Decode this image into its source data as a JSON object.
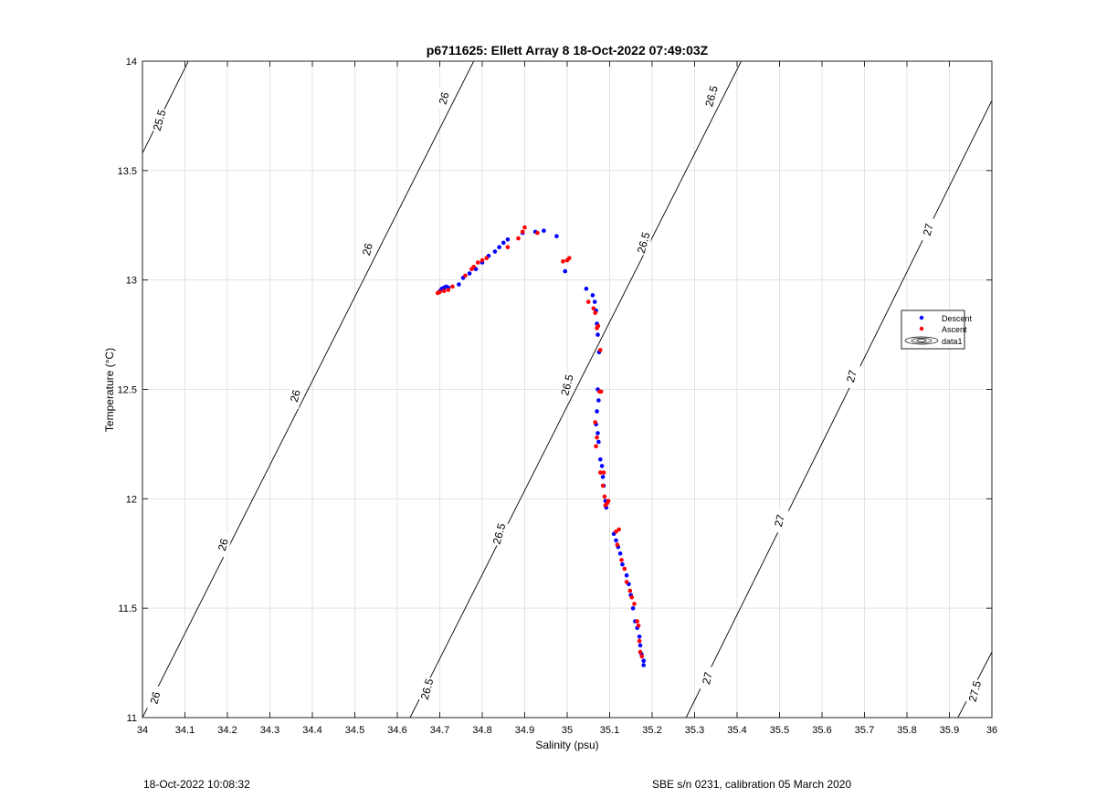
{
  "chart_data": {
    "type": "scatter",
    "title": "p6711625: Ellett Array 8 18-Oct-2022 07:49:03Z",
    "xlabel": "Salinity (psu)",
    "ylabel": "Temperature (°C)",
    "xlim": [
      34,
      36
    ],
    "ylim": [
      11,
      14
    ],
    "xticks": [
      34,
      34.1,
      34.2,
      34.3,
      34.4,
      34.5,
      34.6,
      34.7,
      34.8,
      34.9,
      35,
      35.1,
      35.2,
      35.3,
      35.4,
      35.5,
      35.6,
      35.7,
      35.8,
      35.9,
      36
    ],
    "xtick_labels": [
      "34",
      "34.1",
      "34.2",
      "34.3",
      "34.4",
      "34.5",
      "34.6",
      "34.7",
      "34.8",
      "34.9",
      "35",
      "35.1",
      "35.2",
      "35.3",
      "35.4",
      "35.5",
      "35.6",
      "35.7",
      "35.8",
      "35.9",
      "36"
    ],
    "yticks": [
      11,
      11.5,
      12,
      12.5,
      13,
      13.5,
      14
    ],
    "ytick_labels": [
      "11",
      "11.5",
      "12",
      "12.5",
      "13",
      "13.5",
      "14"
    ],
    "grid": true,
    "legend_position": "right",
    "legend": [
      "Descent",
      "Ascent",
      "data1"
    ],
    "series": [
      {
        "name": "Descent",
        "color": "#0000ff",
        "points": [
          [
            34.7,
            12.95
          ],
          [
            34.705,
            12.96
          ],
          [
            34.71,
            12.965
          ],
          [
            34.715,
            12.97
          ],
          [
            34.72,
            12.965
          ],
          [
            34.745,
            12.98
          ],
          [
            34.755,
            13.01
          ],
          [
            34.77,
            13.03
          ],
          [
            34.785,
            13.05
          ],
          [
            34.8,
            13.08
          ],
          [
            34.815,
            13.11
          ],
          [
            34.83,
            13.13
          ],
          [
            34.84,
            13.15
          ],
          [
            34.85,
            13.17
          ],
          [
            34.86,
            13.185
          ],
          [
            34.895,
            13.215
          ],
          [
            34.925,
            13.22
          ],
          [
            34.945,
            13.225
          ],
          [
            34.975,
            13.2
          ],
          [
            34.995,
            13.04
          ],
          [
            35.045,
            12.96
          ],
          [
            35.06,
            12.93
          ],
          [
            35.065,
            12.9
          ],
          [
            35.068,
            12.86
          ],
          [
            35.07,
            12.8
          ],
          [
            35.072,
            12.75
          ],
          [
            35.075,
            12.67
          ],
          [
            35.072,
            12.5
          ],
          [
            35.074,
            12.45
          ],
          [
            35.07,
            12.4
          ],
          [
            35.068,
            12.34
          ],
          [
            35.072,
            12.3
          ],
          [
            35.074,
            12.26
          ],
          [
            35.078,
            12.18
          ],
          [
            35.082,
            12.15
          ],
          [
            35.084,
            12.1
          ],
          [
            35.086,
            12.06
          ],
          [
            35.09,
            11.99
          ],
          [
            35.092,
            11.96
          ],
          [
            35.11,
            11.84
          ],
          [
            35.115,
            11.81
          ],
          [
            35.12,
            11.78
          ],
          [
            35.125,
            11.75
          ],
          [
            35.13,
            11.7
          ],
          [
            35.14,
            11.65
          ],
          [
            35.145,
            11.61
          ],
          [
            35.15,
            11.56
          ],
          [
            35.155,
            11.5
          ],
          [
            35.16,
            11.44
          ],
          [
            35.165,
            11.41
          ],
          [
            35.17,
            11.37
          ],
          [
            35.172,
            11.33
          ],
          [
            35.175,
            11.29
          ],
          [
            35.18,
            11.26
          ],
          [
            35.18,
            11.24
          ]
        ]
      },
      {
        "name": "Ascent",
        "color": "#ff0000",
        "points": [
          [
            34.695,
            12.94
          ],
          [
            34.7,
            12.945
          ],
          [
            34.71,
            12.95
          ],
          [
            34.72,
            12.955
          ],
          [
            34.73,
            12.97
          ],
          [
            34.76,
            13.02
          ],
          [
            34.775,
            13.05
          ],
          [
            34.78,
            13.06
          ],
          [
            34.79,
            13.08
          ],
          [
            34.8,
            13.09
          ],
          [
            34.81,
            13.1
          ],
          [
            34.86,
            13.15
          ],
          [
            34.885,
            13.19
          ],
          [
            34.895,
            13.22
          ],
          [
            34.9,
            13.24
          ],
          [
            34.93,
            13.215
          ],
          [
            34.99,
            13.085
          ],
          [
            35.0,
            13.09
          ],
          [
            35.005,
            13.1
          ],
          [
            35.05,
            12.9
          ],
          [
            35.062,
            12.87
          ],
          [
            35.066,
            12.85
          ],
          [
            35.07,
            12.78
          ],
          [
            35.073,
            12.79
          ],
          [
            35.078,
            12.68
          ],
          [
            35.076,
            12.49
          ],
          [
            35.08,
            12.49
          ],
          [
            35.066,
            12.35
          ],
          [
            35.07,
            12.28
          ],
          [
            35.068,
            12.24
          ],
          [
            35.078,
            12.12
          ],
          [
            35.086,
            12.12
          ],
          [
            35.084,
            12.06
          ],
          [
            35.088,
            12.01
          ],
          [
            35.09,
            11.97
          ],
          [
            35.094,
            11.98
          ],
          [
            35.097,
            11.99
          ],
          [
            35.115,
            11.85
          ],
          [
            35.122,
            11.86
          ],
          [
            35.118,
            11.79
          ],
          [
            35.128,
            11.72
          ],
          [
            35.135,
            11.68
          ],
          [
            35.14,
            11.62
          ],
          [
            35.148,
            11.58
          ],
          [
            35.152,
            11.55
          ],
          [
            35.158,
            11.52
          ],
          [
            35.165,
            11.44
          ],
          [
            35.168,
            11.42
          ],
          [
            35.17,
            11.35
          ],
          [
            35.172,
            11.3
          ],
          [
            35.176,
            11.28
          ]
        ]
      }
    ],
    "contours": [
      {
        "label": "25.5",
        "points": [
          [
            34.0,
            13.58
          ],
          [
            34.108,
            14.0
          ]
        ]
      },
      {
        "label": "26",
        "points": [
          [
            34.0,
            11.0
          ],
          [
            34.78,
            14.0
          ]
        ]
      },
      {
        "label": "26.5",
        "points": [
          [
            34.63,
            11.0
          ],
          [
            35.41,
            14.0
          ]
        ]
      },
      {
        "label": "27",
        "points": [
          [
            35.28,
            11.0
          ],
          [
            36.0,
            13.82
          ]
        ]
      },
      {
        "label": "27.5",
        "points": [
          [
            35.92,
            11.0
          ],
          [
            36.0,
            11.3
          ]
        ]
      }
    ],
    "contour_labels": [
      {
        "text": "25.5",
        "x": 34.04,
        "y": 13.73,
        "angle": -75
      },
      {
        "text": "26",
        "x": 34.71,
        "y": 13.83,
        "angle": -75
      },
      {
        "text": "26",
        "x": 34.53,
        "y": 13.14,
        "angle": -75
      },
      {
        "text": "26",
        "x": 34.36,
        "y": 12.47,
        "angle": -75
      },
      {
        "text": "26",
        "x": 34.19,
        "y": 11.79,
        "angle": -75
      },
      {
        "text": "26",
        "x": 34.03,
        "y": 11.09,
        "angle": -75
      },
      {
        "text": "26.5",
        "x": 35.34,
        "y": 13.84,
        "angle": -75
      },
      {
        "text": "26.5",
        "x": 35.18,
        "y": 13.17,
        "angle": -75
      },
      {
        "text": "26.5",
        "x": 35.0,
        "y": 12.52,
        "angle": -75
      },
      {
        "text": "26.5",
        "x": 34.84,
        "y": 11.84,
        "angle": -75
      },
      {
        "text": "26.5",
        "x": 34.67,
        "y": 11.13,
        "angle": -75
      },
      {
        "text": "27",
        "x": 35.85,
        "y": 13.23,
        "angle": -75
      },
      {
        "text": "27",
        "x": 35.67,
        "y": 12.56,
        "angle": -75
      },
      {
        "text": "27",
        "x": 35.5,
        "y": 11.9,
        "angle": -75
      },
      {
        "text": "27",
        "x": 35.33,
        "y": 11.18,
        "angle": -75
      },
      {
        "text": "27.5",
        "x": 35.96,
        "y": 11.12,
        "angle": -75
      }
    ]
  },
  "footer": {
    "left": "18-Oct-2022 10:08:32",
    "right": "SBE s/n 0231, calibration 05 March 2020"
  }
}
